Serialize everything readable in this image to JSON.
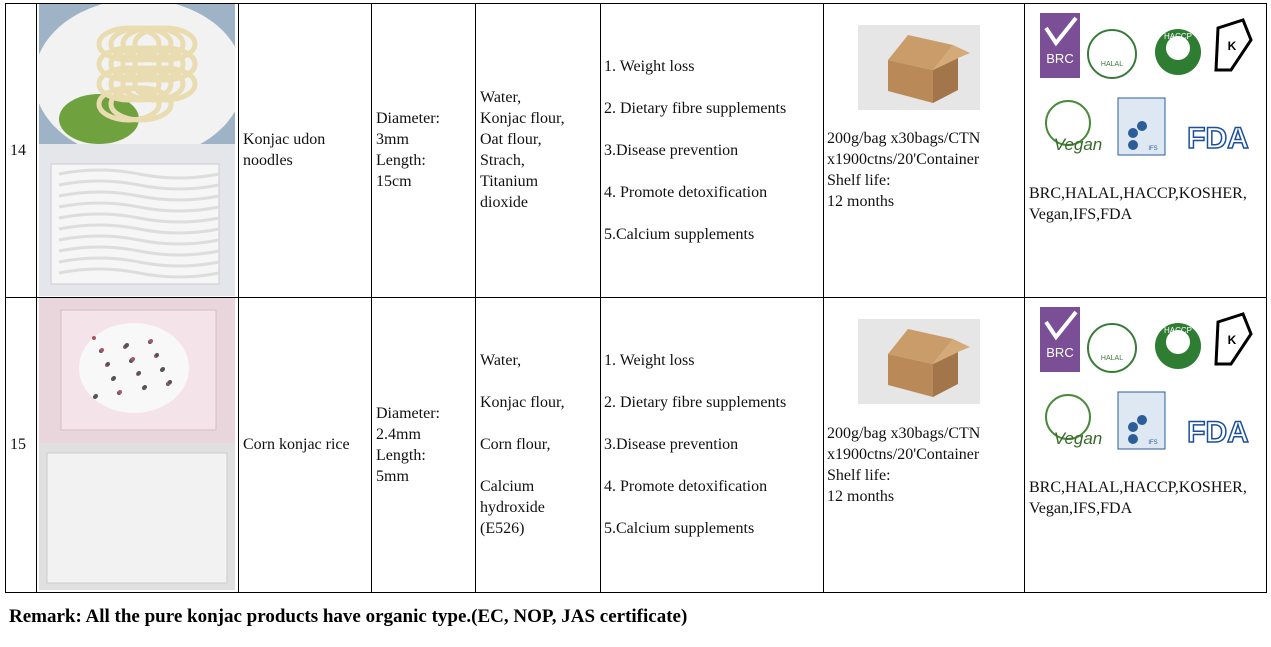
{
  "table": {
    "rows": [
      {
        "no": "14",
        "name": [
          "Konjac udon",
          "noodles"
        ],
        "size": [
          [
            "Diameter:",
            "3mm",
            "Length:",
            "15cm"
          ]
        ],
        "ingredients": [
          [
            "Water,",
            "Konjac flour,",
            "Oat flour,",
            "Strach,",
            "Titanium",
            "dioxide"
          ]
        ],
        "benefits": [
          [
            "1. Weight loss"
          ],
          [
            "2. Dietary fibre supplements"
          ],
          [
            "3.Disease prevention"
          ],
          [
            "4. Promote detoxification"
          ],
          [
            "5.Calcium supplements"
          ]
        ],
        "packing": [
          [
            "200g/bag x30bags/CTN",
            "x1900ctns/20'Container",
            "Shelf life:",
            "12 months"
          ]
        ],
        "logos": [
          "BRC",
          "HALAL",
          "HACCP",
          "K",
          "Vegan",
          "IFS",
          "FDA"
        ],
        "certs": [
          [
            "BRC,HALAL,HACCP,KOSHER,",
            "Vegan,IFS,FDA"
          ]
        ]
      },
      {
        "no": "15",
        "name": [
          "Corn konjac rice"
        ],
        "size": [
          [
            "Diameter:",
            "2.4mm",
            "Length:",
            "5mm"
          ]
        ],
        "ingredients": [
          [
            "Water,"
          ],
          [
            "Konjac flour,"
          ],
          [
            "Corn flour,"
          ],
          [
            "Calcium",
            "hydroxide",
            "(E526)"
          ]
        ],
        "benefits": [
          [
            "1. Weight loss"
          ],
          [
            "2. Dietary fibre supplements"
          ],
          [
            "3.Disease prevention"
          ],
          [
            "4. Promote detoxification"
          ],
          [
            "5.Calcium supplements"
          ]
        ],
        "packing": [
          [
            "200g/bag x30bags/CTN",
            "x1900ctns/20'Container",
            "Shelf life:",
            "12 months"
          ]
        ],
        "logos": [
          "BRC",
          "HALAL",
          "HACCP",
          "K",
          "Vegan",
          "IFS",
          "FDA"
        ],
        "certs": [
          [
            "BRC,HALAL,HACCP,KOSHER,",
            "Vegan,IFS,FDA"
          ]
        ]
      }
    ]
  },
  "remark": "Remark: All the pure konjac products have organic type.(EC, NOP, JAS certificate)"
}
